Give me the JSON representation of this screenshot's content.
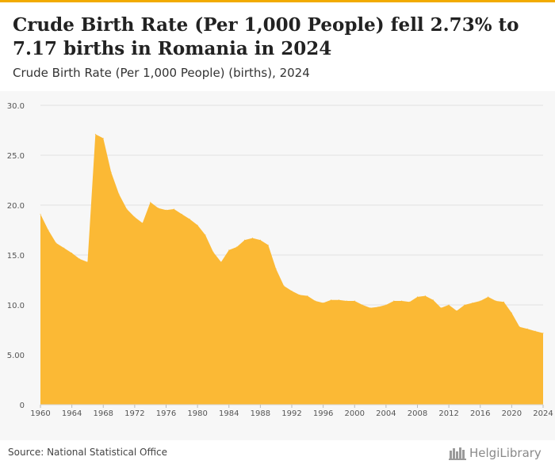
{
  "header": {
    "title": "Crude Birth Rate (Per 1,000 People) fell 2.73% to 7.17 births in Romania in 2024",
    "subtitle": "Crude Birth Rate (Per 1,000 People) (births), 2024"
  },
  "footer": {
    "source": "Source: National Statistical Office",
    "brand": "HelgiLibrary"
  },
  "colors": {
    "accent": "#f2ab00",
    "area_fill": "#fbb935",
    "plot_background": "#f7f7f7"
  },
  "chart_data": {
    "type": "area",
    "title": "",
    "xlabel": "",
    "ylabel": "",
    "ylim": [
      0,
      30
    ],
    "y_ticks": [
      "0",
      "5.00",
      "10.0",
      "15.0",
      "20.0",
      "25.0",
      "30.0"
    ],
    "x_ticks": [
      "1960",
      "1964",
      "1968",
      "1972",
      "1976",
      "1980",
      "1984",
      "1988",
      "1992",
      "1996",
      "2000",
      "2004",
      "2008",
      "2012",
      "2016",
      "2020",
      "2024"
    ],
    "grid": true,
    "legend": "none",
    "x": [
      1960,
      1961,
      1962,
      1963,
      1964,
      1965,
      1966,
      1967,
      1968,
      1969,
      1970,
      1971,
      1972,
      1973,
      1974,
      1975,
      1976,
      1977,
      1978,
      1979,
      1980,
      1981,
      1982,
      1983,
      1984,
      1985,
      1986,
      1987,
      1988,
      1989,
      1990,
      1991,
      1992,
      1993,
      1994,
      1995,
      1996,
      1997,
      1998,
      1999,
      2000,
      2001,
      2002,
      2003,
      2004,
      2005,
      2006,
      2007,
      2008,
      2009,
      2010,
      2011,
      2012,
      2013,
      2014,
      2015,
      2016,
      2017,
      2018,
      2019,
      2020,
      2021,
      2022,
      2023,
      2024
    ],
    "values": [
      19.1,
      17.5,
      16.2,
      15.7,
      15.2,
      14.6,
      14.3,
      27.1,
      26.7,
      23.3,
      21.1,
      19.6,
      18.8,
      18.2,
      20.3,
      19.7,
      19.5,
      19.6,
      19.1,
      18.6,
      18.0,
      17.0,
      15.3,
      14.3,
      15.5,
      15.8,
      16.5,
      16.7,
      16.5,
      16.0,
      13.6,
      11.9,
      11.4,
      11.0,
      10.9,
      10.4,
      10.2,
      10.5,
      10.5,
      10.4,
      10.4,
      10.0,
      9.7,
      9.8,
      10.0,
      10.4,
      10.4,
      10.3,
      10.8,
      10.9,
      10.5,
      9.7,
      10.0,
      9.4,
      10.0,
      10.2,
      10.4,
      10.8,
      10.4,
      10.3,
      9.2,
      7.8,
      7.6,
      7.37,
      7.17
    ]
  }
}
